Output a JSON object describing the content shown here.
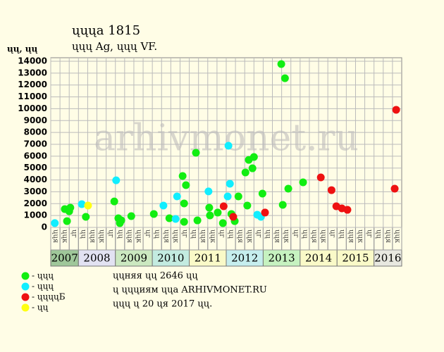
{
  "chart_data": {
    "type": "scatter",
    "title": "ųųųа 1815",
    "subtitle": "ųųų Ag, ųųų VF.",
    "y_label": "ųų, ųų",
    "watermark": "arhivmonet.ru",
    "xlim": [
      2007.25,
      2016.75
    ],
    "xticks": [
      {
        "value": 2007,
        "label": "2007"
      },
      {
        "value": 2008,
        "label": "2008"
      },
      {
        "value": 2009,
        "label": "2009"
      },
      {
        "value": 2010,
        "label": "2010"
      },
      {
        "value": 2011,
        "label": "2011"
      },
      {
        "value": 2012,
        "label": "2012"
      },
      {
        "value": 2013,
        "label": "2013"
      },
      {
        "value": 2014,
        "label": "2014"
      },
      {
        "value": 2015,
        "label": "2015"
      },
      {
        "value": 2016,
        "label": "2016"
      }
    ],
    "band_colors": [
      "#9fc79a",
      "#e2e2f2",
      "#cbe8c0",
      "#c3ebe0",
      "#fafac8",
      "#c6eeee",
      "#c6f2c0",
      "#fafac8",
      "#fafac8",
      "#e8e8e0"
    ],
    "quarter_labels": [
      "ųų",
      "ųųя",
      "ųųк",
      "ųг"
    ],
    "ylim": [
      0,
      14000
    ],
    "yticks": [
      0,
      1000,
      2000,
      3000,
      4000,
      5000,
      6000,
      7000,
      8000,
      9000,
      10000,
      11000,
      12000,
      13000,
      14000
    ],
    "grid": true,
    "series": [
      {
        "name": "- ųųų",
        "color": "#11ee11",
        "x": [
          2007.63,
          2007.69,
          2007.75,
          2007.78,
          2008.2,
          2008.97,
          2009.08,
          2009.12,
          2009.16,
          2009.43,
          2010.04,
          2010.46,
          2010.82,
          2010.86,
          2010.86,
          2010.91,
          2011.18,
          2011.22,
          2011.54,
          2011.56,
          2011.77,
          2011.91,
          2012.14,
          2012.23,
          2012.33,
          2012.52,
          2012.57,
          2012.61,
          2012.71,
          2012.75,
          2012.98,
          2013.49,
          2013.53,
          2013.59,
          2013.68,
          2014.08
        ],
        "values": [
          1540,
          530,
          1360,
          1660,
          890,
          2190,
          770,
          360,
          590,
          950,
          1130,
          770,
          4330,
          470,
          2020,
          3560,
          6290,
          590,
          1660,
          1010,
          1250,
          360,
          1130,
          530,
          2610,
          4630,
          1840,
          5690,
          4980,
          5930,
          2850,
          13760,
          1900,
          12570,
          3260,
          3800
        ]
      },
      {
        "name": "- ųųų",
        "color": "#11eeff",
        "x": [
          2007.36,
          2008.09,
          2009.02,
          2010.3,
          2010.67,
          2010.63,
          2011.52,
          2012.06,
          2012.1,
          2012.04,
          2012.84,
          2012.94
        ],
        "values": [
          360,
          1960,
          3970,
          1840,
          2610,
          710,
          3030,
          6880,
          3680,
          2610,
          1070,
          890
        ]
      },
      {
        "name": "- ųųųųБ",
        "color": "#ee1111",
        "x": [
          2011.93,
          2012.19,
          2013.05,
          2014.56,
          2014.85,
          2014.98,
          2015.13,
          2015.28,
          2016.6,
          2016.56
        ],
        "values": [
          1780,
          890,
          1250,
          4210,
          3140,
          1780,
          1600,
          1480,
          9910,
          3260
        ]
      },
      {
        "name": "- ųų",
        "color": "#ffff11",
        "x": [
          2008.26
        ],
        "values": [
          1840
        ]
      }
    ],
    "notes": [
      "ųųняя ųų 2646 ųų",
      "ų ųųųиям ųųа ARHIVMONET.RU",
      "ųųų ų 20 ųя 2017 ųų."
    ]
  }
}
